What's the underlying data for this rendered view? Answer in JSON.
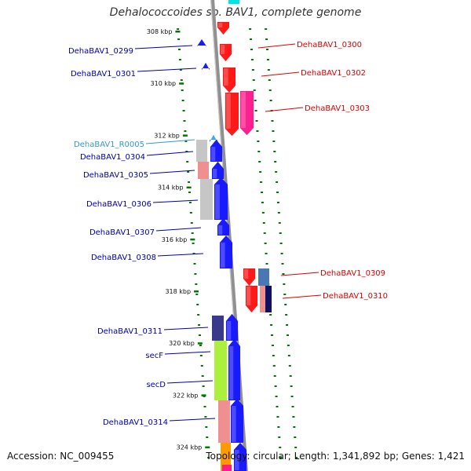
{
  "title": "Dehalococcoides sp. BAV1, complete genome",
  "footer": {
    "accession": "Accession: NC_009455",
    "topology": "Topology: circular; Length: 1,341,892 bp; Genes: 1,421"
  },
  "colors": {
    "forward_label": "#0000aa",
    "reverse_label": "#dd0000",
    "rna_label": "#3399cc",
    "backbone": "#909090",
    "ticks": "#007700"
  },
  "kbp_marks": [
    {
      "kbp": 308,
      "label": "308 kbp"
    },
    {
      "kbp": 310,
      "label": "310 kbp"
    },
    {
      "kbp": 312,
      "label": "312 kbp"
    },
    {
      "kbp": 314,
      "label": "314 kbp"
    },
    {
      "kbp": 316,
      "label": "316 kbp"
    },
    {
      "kbp": 318,
      "label": "318 kbp"
    },
    {
      "kbp": 320,
      "label": "320 kbp"
    },
    {
      "kbp": 322,
      "label": "322 kbp"
    },
    {
      "kbp": 324,
      "label": "324 kbp"
    }
  ],
  "left_labels": [
    {
      "name": "DehaBAV1_0299",
      "kind": "forward"
    },
    {
      "name": "DehaBAV1_0301",
      "kind": "forward"
    },
    {
      "name": "DehaBAV1_R0005",
      "kind": "rna"
    },
    {
      "name": "DehaBAV1_0304",
      "kind": "forward"
    },
    {
      "name": "DehaBAV1_0305",
      "kind": "forward"
    },
    {
      "name": "DehaBAV1_0306",
      "kind": "forward"
    },
    {
      "name": "DehaBAV1_0307",
      "kind": "forward"
    },
    {
      "name": "DehaBAV1_0308",
      "kind": "forward"
    },
    {
      "name": "DehaBAV1_0311",
      "kind": "forward"
    },
    {
      "name": "secF",
      "kind": "forward"
    },
    {
      "name": "secD",
      "kind": "forward"
    },
    {
      "name": "DehaBAV1_0314",
      "kind": "forward"
    }
  ],
  "right_labels": [
    {
      "name": "DehaBAV1_0300",
      "kind": "reverse"
    },
    {
      "name": "DehaBAV1_0302",
      "kind": "reverse"
    },
    {
      "name": "DehaBAV1_0303",
      "kind": "reverse"
    },
    {
      "name": "DehaBAV1_0309",
      "kind": "reverse"
    },
    {
      "name": "DehaBAV1_0310",
      "kind": "reverse"
    }
  ]
}
